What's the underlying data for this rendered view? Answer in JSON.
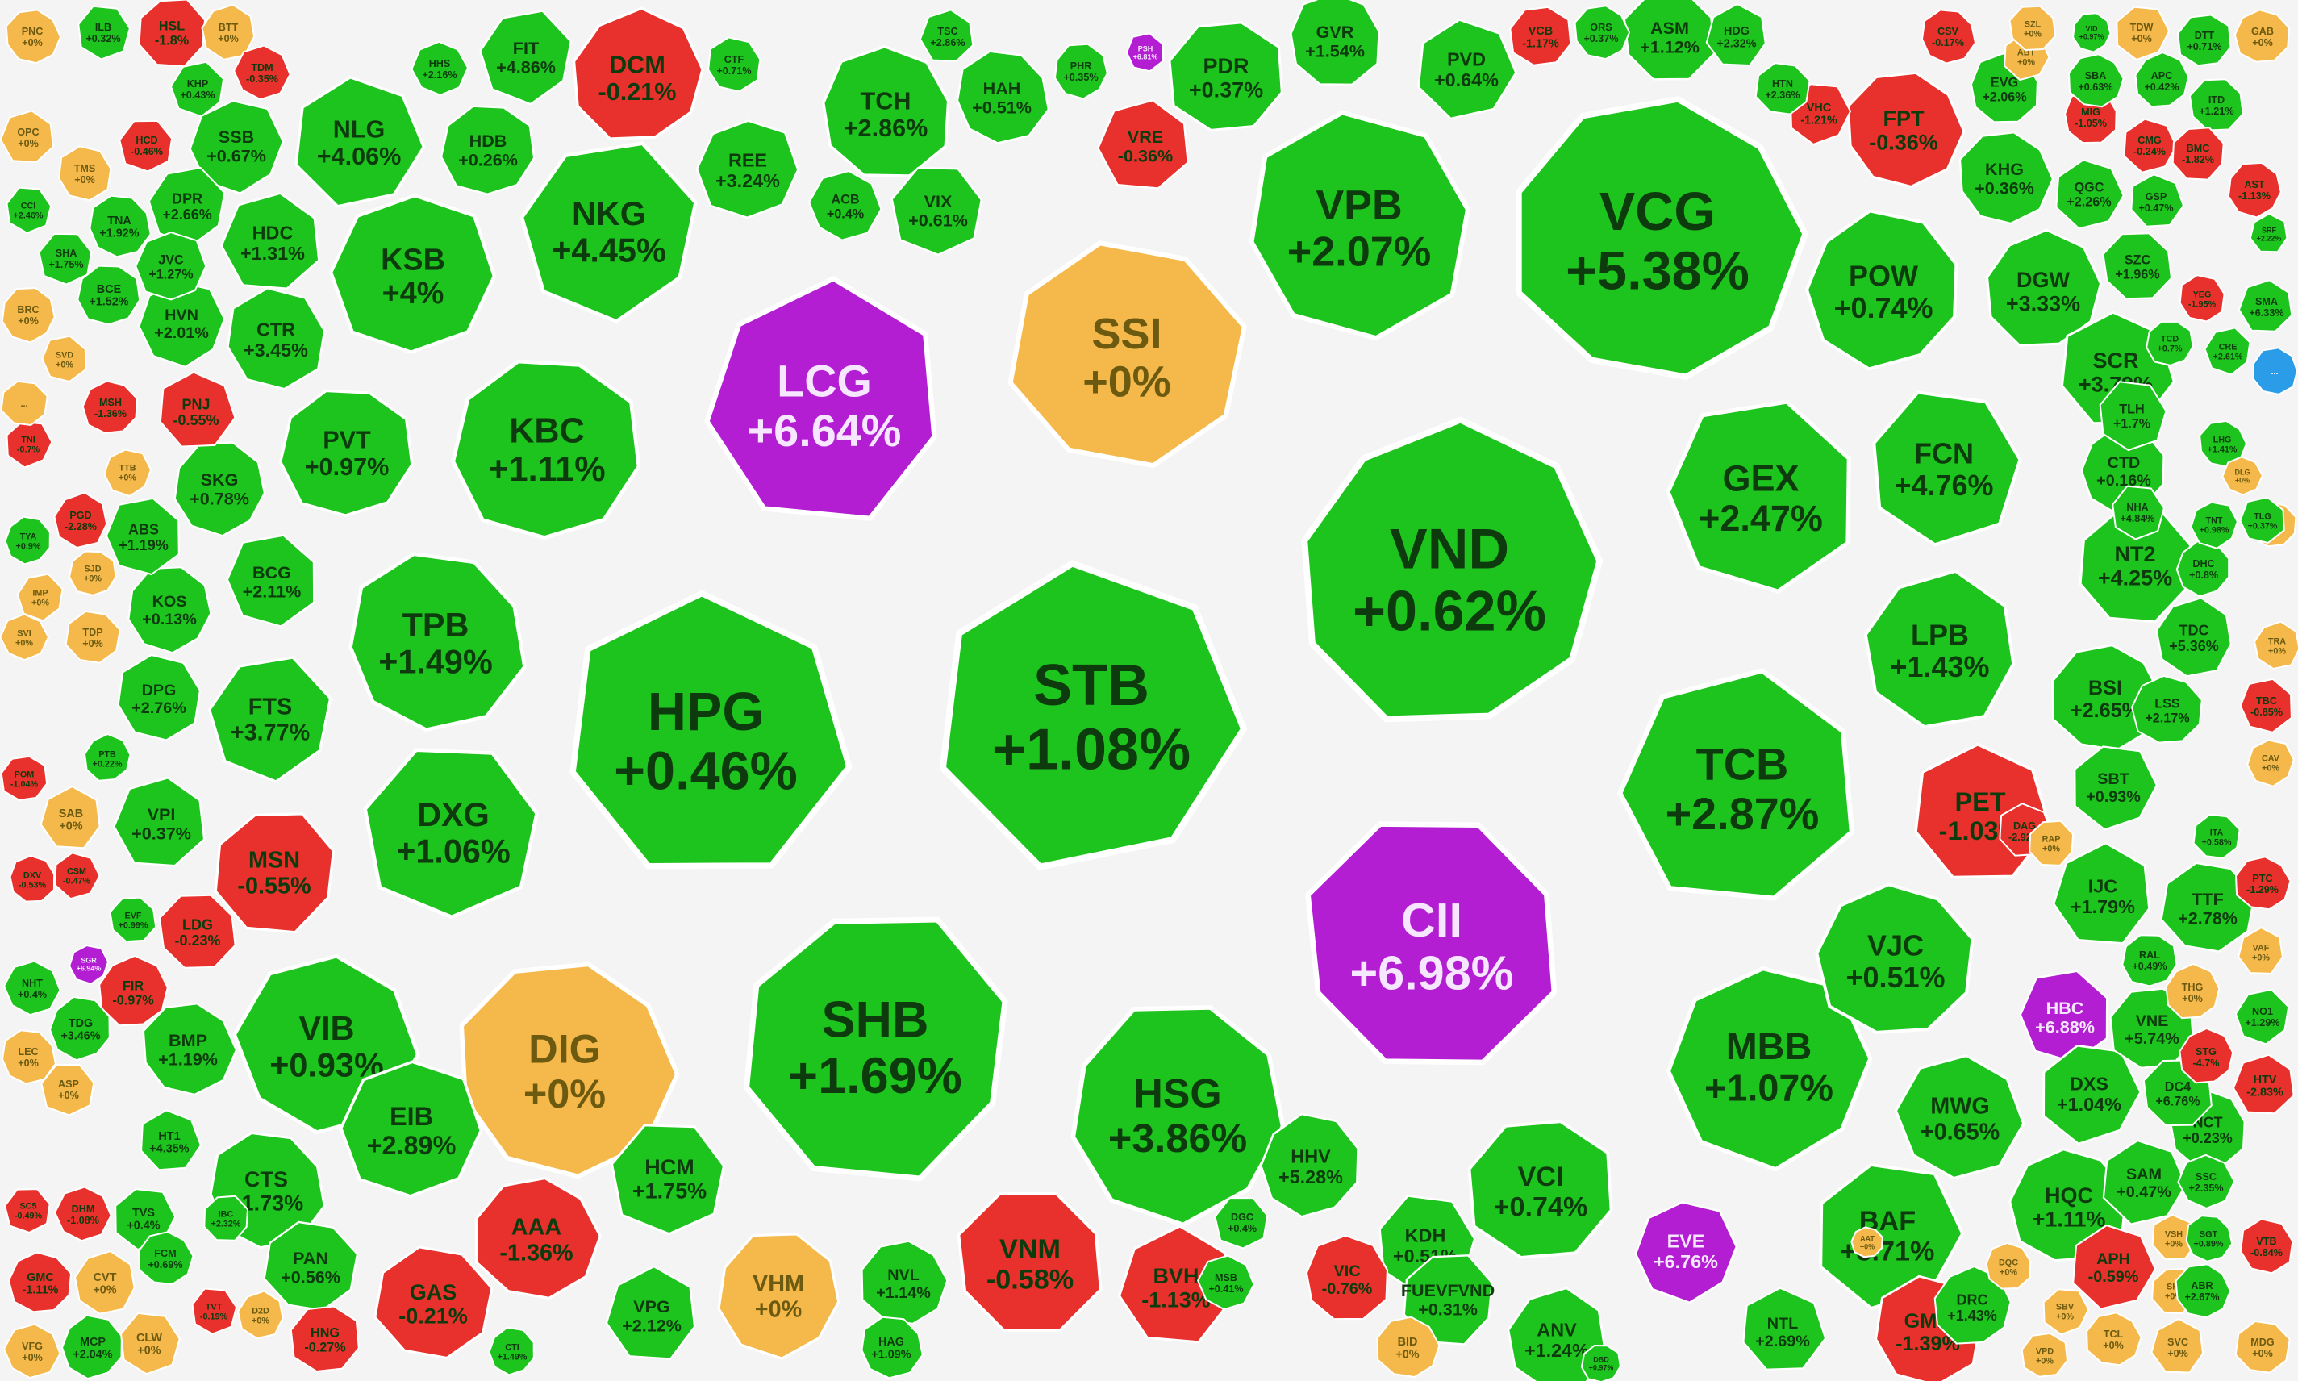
{
  "colors": {
    "up": "#1ec41e",
    "down": "#e8302c",
    "flat": "#f5b84a",
    "ceiling": "#b31ed2",
    "floor": "#2a9ce8",
    "background": "#f4f4f4"
  },
  "stocks": [
    {
      "ticker": "STB",
      "change": "+1.08%",
      "status": "up"
    },
    {
      "ticker": "CII",
      "change": "+6.98%",
      "status": "ceiling"
    },
    {
      "ticker": "VND",
      "change": "+0.62%",
      "status": "up"
    },
    {
      "ticker": "HPG",
      "change": "+0.46%",
      "status": "up"
    },
    {
      "ticker": "SHB",
      "change": "+1.69%",
      "status": "up"
    },
    {
      "ticker": "VCG",
      "change": "+5.38%",
      "status": "up"
    },
    {
      "ticker": "LCG",
      "change": "+6.64%",
      "status": "ceiling"
    },
    {
      "ticker": "SSI",
      "change": "+0%",
      "status": "flat"
    },
    {
      "ticker": "DIG",
      "change": "+0%",
      "status": "flat"
    },
    {
      "ticker": "TCB",
      "change": "+2.87%",
      "status": "up"
    },
    {
      "ticker": "VPB",
      "change": "+2.07%",
      "status": "up"
    },
    {
      "ticker": "HSG",
      "change": "+3.86%",
      "status": "up"
    },
    {
      "ticker": "GEX",
      "change": "+2.47%",
      "status": "up"
    },
    {
      "ticker": "MBB",
      "change": "+1.07%",
      "status": "up"
    },
    {
      "ticker": "KBC",
      "change": "+1.11%",
      "status": "up"
    },
    {
      "ticker": "NKG",
      "change": "+4.45%",
      "status": "up"
    },
    {
      "ticker": "KSB",
      "change": "+4%",
      "status": "up"
    },
    {
      "ticker": "TPB",
      "change": "+1.49%",
      "status": "up"
    },
    {
      "ticker": "DXG",
      "change": "+1.06%",
      "status": "up"
    },
    {
      "ticker": "VIB",
      "change": "+0.93%",
      "status": "up"
    },
    {
      "ticker": "POW",
      "change": "+0.74%",
      "status": "up"
    },
    {
      "ticker": "FCN",
      "change": "+4.76%",
      "status": "up"
    },
    {
      "ticker": "LPB",
      "change": "+1.43%",
      "status": "up"
    },
    {
      "ticker": "VJC",
      "change": "+0.51%",
      "status": "up"
    },
    {
      "ticker": "BAF",
      "change": "+3.71%",
      "status": "up"
    },
    {
      "ticker": "VCI",
      "change": "+0.74%",
      "status": "up"
    },
    {
      "ticker": "TCH",
      "change": "+2.86%",
      "status": "up"
    },
    {
      "ticker": "NLG",
      "change": "+4.06%",
      "status": "up"
    },
    {
      "ticker": "VNM",
      "change": "-0.58%",
      "status": "down"
    },
    {
      "ticker": "DCM",
      "change": "-0.21%",
      "status": "down"
    },
    {
      "ticker": "PET",
      "change": "-1.03%",
      "status": "down"
    },
    {
      "ticker": "MSN",
      "change": "-0.55%",
      "status": "down"
    },
    {
      "ticker": "AAA",
      "change": "-1.36%",
      "status": "down"
    },
    {
      "ticker": "BVH",
      "change": "-1.13%",
      "status": "down"
    },
    {
      "ticker": "GAS",
      "change": "-0.21%",
      "status": "down"
    },
    {
      "ticker": "FPT",
      "change": "-0.36%",
      "status": "down"
    },
    {
      "ticker": "VRE",
      "change": "-0.36%",
      "status": "down"
    },
    {
      "ticker": "GMD",
      "change": "-1.39%",
      "status": "down"
    },
    {
      "ticker": "VHM",
      "change": "+0%",
      "status": "flat"
    },
    {
      "ticker": "HBC",
      "change": "+6.88%",
      "status": "ceiling"
    },
    {
      "ticker": "EVE",
      "change": "+6.76%",
      "status": "ceiling"
    },
    {
      "ticker": "PVT",
      "change": "+0.97%",
      "status": "up"
    },
    {
      "ticker": "FTS",
      "change": "+3.77%",
      "status": "up"
    },
    {
      "ticker": "EIB",
      "change": "+2.89%",
      "status": "up"
    },
    {
      "ticker": "CTS",
      "change": "+1.73%",
      "status": "up"
    },
    {
      "ticker": "HCM",
      "change": "+1.75%",
      "status": "up"
    },
    {
      "ticker": "MWG",
      "change": "+0.65%",
      "status": "up"
    },
    {
      "ticker": "HHV",
      "change": "+5.28%",
      "status": "up"
    },
    {
      "ticker": "KDH",
      "change": "+0.51%",
      "status": "up"
    },
    {
      "ticker": "ANV",
      "change": "+1.24%",
      "status": "up"
    },
    {
      "ticker": "HQC",
      "change": "+1.11%",
      "status": "up"
    },
    {
      "ticker": "DXS",
      "change": "+1.04%",
      "status": "up"
    },
    {
      "ticker": "PDR",
      "change": "+0.37%",
      "status": "up"
    },
    {
      "ticker": "GVR",
      "change": "+1.54%",
      "status": "up"
    },
    {
      "ticker": "PVD",
      "change": "+0.64%",
      "status": "up"
    },
    {
      "ticker": "ASM",
      "change": "+1.12%",
      "status": "up"
    },
    {
      "ticker": "DGW",
      "change": "+3.33%",
      "status": "up"
    },
    {
      "ticker": "SCR",
      "change": "+3.79%",
      "status": "up"
    },
    {
      "ticker": "NT2",
      "change": "+4.25%",
      "status": "up"
    },
    {
      "ticker": "BSI",
      "change": "+2.65%",
      "status": "up"
    },
    {
      "ticker": "IJC",
      "change": "+1.79%",
      "status": "up"
    },
    {
      "ticker": "TTF",
      "change": "+2.78%",
      "status": "up"
    },
    {
      "ticker": "KHG",
      "change": "+0.36%",
      "status": "up"
    },
    {
      "ticker": "HDC",
      "change": "+1.31%",
      "status": "up"
    },
    {
      "ticker": "CTR",
      "change": "+3.45%",
      "status": "up"
    },
    {
      "ticker": "SKG",
      "change": "+0.78%",
      "status": "up"
    },
    {
      "ticker": "BCG",
      "change": "+2.11%",
      "status": "up"
    },
    {
      "ticker": "SSB",
      "change": "+0.67%",
      "status": "up"
    },
    {
      "ticker": "HDB",
      "change": "+0.26%",
      "status": "up"
    },
    {
      "ticker": "FIT",
      "change": "+4.86%",
      "status": "up"
    },
    {
      "ticker": "REE",
      "change": "+3.24%",
      "status": "up"
    },
    {
      "ticker": "HAH",
      "change": "+0.51%",
      "status": "up"
    },
    {
      "ticker": "VIX",
      "change": "+0.61%",
      "status": "up"
    },
    {
      "ticker": "ACB",
      "change": "+0.4%",
      "status": "up"
    },
    {
      "ticker": "CTD",
      "change": "+0.16%",
      "status": "up"
    },
    {
      "ticker": "TLH",
      "change": "+1.7%",
      "status": "up"
    },
    {
      "ticker": "TDC",
      "change": "+5.36%",
      "status": "up"
    },
    {
      "ticker": "LSS",
      "change": "+2.17%",
      "status": "up"
    },
    {
      "ticker": "SBT",
      "change": "+0.93%",
      "status": "up"
    },
    {
      "ticker": "VNE",
      "change": "+5.74%",
      "status": "up"
    },
    {
      "ticker": "NCT",
      "change": "+0.23%",
      "status": "up"
    },
    {
      "ticker": "SAM",
      "change": "+0.47%",
      "status": "up"
    },
    {
      "ticker": "DC4",
      "change": "+6.76%",
      "status": "up"
    },
    {
      "ticker": "DRC",
      "change": "+1.43%",
      "status": "up"
    },
    {
      "ticker": "NTL",
      "change": "+2.69%",
      "status": "up"
    },
    {
      "ticker": "FUEVFVND",
      "change": "+0.31%",
      "status": "up"
    },
    {
      "ticker": "NVL",
      "change": "+1.14%",
      "status": "up"
    },
    {
      "ticker": "VPG",
      "change": "+2.12%",
      "status": "up"
    },
    {
      "ticker": "PAN",
      "change": "+0.56%",
      "status": "up"
    },
    {
      "ticker": "BMP",
      "change": "+1.19%",
      "status": "up"
    },
    {
      "ticker": "VPI",
      "change": "+0.37%",
      "status": "up"
    },
    {
      "ticker": "DPG",
      "change": "+2.76%",
      "status": "up"
    },
    {
      "ticker": "KOS",
      "change": "+0.13%",
      "status": "up"
    },
    {
      "ticker": "ABS",
      "change": "+1.19%",
      "status": "up"
    },
    {
      "ticker": "HVN",
      "change": "+2.01%",
      "status": "up"
    },
    {
      "ticker": "BCE",
      "change": "+1.52%",
      "status": "up"
    },
    {
      "ticker": "DPR",
      "change": "+2.66%",
      "status": "up"
    },
    {
      "ticker": "JVC",
      "change": "+1.27%",
      "status": "up"
    },
    {
      "ticker": "TNA",
      "change": "+1.92%",
      "status": "up"
    },
    {
      "ticker": "SHA",
      "change": "+1.75%",
      "status": "up"
    },
    {
      "ticker": "VFG",
      "change": "+0%",
      "status": "flat"
    },
    {
      "ticker": "MCP",
      "change": "+2.04%",
      "status": "up"
    },
    {
      "ticker": "CLW",
      "change": "+0%",
      "status": "flat"
    },
    {
      "ticker": "CVT",
      "change": "+0%",
      "status": "flat"
    },
    {
      "ticker": "GMC",
      "change": "-1.11%",
      "status": "down"
    },
    {
      "ticker": "TVS",
      "change": "+0.4%",
      "status": "up"
    },
    {
      "ticker": "HNG",
      "change": "-0.27%",
      "status": "down"
    },
    {
      "ticker": "VIC",
      "change": "-0.76%",
      "status": "down"
    },
    {
      "ticker": "APH",
      "change": "-0.59%",
      "status": "down"
    },
    {
      "ticker": "LDG",
      "change": "-0.23%",
      "status": "down"
    },
    {
      "ticker": "FIR",
      "change": "-0.97%",
      "status": "down"
    },
    {
      "ticker": "PNJ",
      "change": "-0.55%",
      "status": "down"
    },
    {
      "ticker": "HSL",
      "change": "-1.8%",
      "status": "down"
    },
    {
      "ticker": "BID",
      "change": "+0%",
      "status": "flat"
    },
    {
      "ticker": "SAB",
      "change": "+0%",
      "status": "flat"
    },
    {
      "ticker": "TDP",
      "change": "+0%",
      "status": "flat"
    },
    {
      "ticker": "PNC",
      "change": "+0%",
      "status": "flat"
    },
    {
      "ticker": "OPC",
      "change": "+0%",
      "status": "flat"
    },
    {
      "ticker": "TMS",
      "change": "+0%",
      "status": "flat"
    },
    {
      "ticker": "BRC",
      "change": "+0%",
      "status": "flat"
    },
    {
      "ticker": "SVD",
      "change": "+0%",
      "status": "flat"
    },
    {
      "ticker": "TTB",
      "change": "+0%",
      "status": "flat"
    },
    {
      "ticker": "SJD",
      "change": "+0%",
      "status": "flat"
    },
    {
      "ticker": "IMP",
      "change": "+0%",
      "status": "flat"
    },
    {
      "ticker": "SVI",
      "change": "+0%",
      "status": "flat"
    },
    {
      "ticker": "LEC",
      "change": "+0%",
      "status": "flat"
    },
    {
      "ticker": "ASP",
      "change": "+0%",
      "status": "flat"
    },
    {
      "ticker": "NHT",
      "change": "+0.4%",
      "status": "up"
    },
    {
      "ticker": "TYA",
      "change": "+0.9%",
      "status": "up"
    },
    {
      "ticker": "ILB",
      "change": "+0.32%",
      "status": "up"
    },
    {
      "ticker": "BTT",
      "change": "+0%",
      "status": "flat"
    },
    {
      "ticker": "GAB",
      "change": "+0%",
      "status": "flat"
    },
    {
      "ticker": "TDW",
      "change": "+0%",
      "status": "flat"
    },
    {
      "ticker": "DTT",
      "change": "+0.71%",
      "status": "up"
    },
    {
      "ticker": "EVG",
      "change": "+2.06%",
      "status": "up"
    },
    {
      "ticker": "QGC",
      "change": "+2.26%",
      "status": "up"
    },
    {
      "ticker": "SZC",
      "change": "+1.96%",
      "status": "up"
    },
    {
      "ticker": "THG",
      "change": "+0%",
      "status": "flat"
    },
    {
      "ticker": "VSH",
      "change": "+0%",
      "status": "flat"
    },
    {
      "ticker": "SHI",
      "change": "+0%",
      "status": "flat"
    },
    {
      "ticker": "TCL",
      "change": "+0%",
      "status": "flat"
    },
    {
      "ticker": "SVC",
      "change": "+0%",
      "status": "flat"
    },
    {
      "ticker": "MDG",
      "change": "+0%",
      "status": "flat"
    },
    {
      "ticker": "ABR",
      "change": "+2.67%",
      "status": "up"
    },
    {
      "ticker": "HTV",
      "change": "-2.83%",
      "status": "down"
    },
    {
      "ticker": "VTB",
      "change": "-0.84%",
      "status": "down"
    },
    {
      "ticker": "AST",
      "change": "-1.13%",
      "status": "down"
    },
    {
      "ticker": "TBC",
      "change": "-0.85%",
      "status": "down"
    },
    {
      "ticker": "CAV",
      "change": "+0%",
      "status": "flat"
    },
    {
      "ticker": "RAL",
      "change": "+0.49%",
      "status": "up"
    },
    {
      "ticker": "NO1",
      "change": "+1.29%",
      "status": "up"
    },
    {
      "ticker": "SSC",
      "change": "+2.35%",
      "status": "up"
    },
    {
      "ticker": "HAG",
      "change": "+1.09%",
      "status": "up"
    },
    {
      "ticker": "DGC",
      "change": "+0.4%",
      "status": "up"
    },
    {
      "ticker": "MSB",
      "change": "+0.41%",
      "status": "up"
    },
    {
      "ticker": "DHC",
      "change": "+0.8%",
      "status": "up"
    },
    {
      "ticker": "NHA",
      "change": "+4.84%",
      "status": "up"
    },
    {
      "ticker": "TRA",
      "change": "+0%",
      "status": "flat"
    },
    {
      "ticker": "S4A",
      "change": "+0%",
      "status": "flat"
    },
    {
      "ticker": "VHC",
      "change": "-1.21%",
      "status": "down"
    },
    {
      "ticker": "VCB",
      "change": "-1.17%",
      "status": "down"
    },
    {
      "ticker": "MIG",
      "change": "-1.05%",
      "status": "down"
    },
    {
      "ticker": "CMG",
      "change": "-0.24%",
      "status": "down"
    },
    {
      "ticker": "ITD",
      "change": "+1.21%",
      "status": "up"
    },
    {
      "ticker": "APC",
      "change": "+0.42%",
      "status": "up"
    },
    {
      "ticker": "GSP",
      "change": "+0.47%",
      "status": "up"
    },
    {
      "ticker": "BMC",
      "change": "-1.82%",
      "status": "down"
    },
    {
      "ticker": "SBA",
      "change": "+0.63%",
      "status": "up"
    },
    {
      "ticker": "HDG",
      "change": "+2.32%",
      "status": "up"
    },
    {
      "ticker": "HTN",
      "change": "+2.36%",
      "status": "up"
    },
    {
      "ticker": "ORS",
      "change": "+0.37%",
      "status": "up"
    },
    {
      "ticker": "TSC",
      "change": "+2.86%",
      "status": "up"
    },
    {
      "ticker": "CTF",
      "change": "+0.71%",
      "status": "up"
    },
    {
      "ticker": "PHR",
      "change": "+0.35%",
      "status": "up"
    },
    {
      "ticker": "PSH",
      "change": "+6.81%",
      "status": "ceiling"
    },
    {
      "ticker": "SGR",
      "change": "+6.94%",
      "status": "ceiling"
    },
    {
      "ticker": "DBD",
      "change": "+0.97%",
      "status": "up"
    },
    {
      "ticker": "KHP",
      "change": "+0.43%",
      "status": "up"
    },
    {
      "ticker": "HHS",
      "change": "+2.16%",
      "status": "up"
    },
    {
      "ticker": "CSV",
      "change": "-0.17%",
      "status": "down"
    },
    {
      "ticker": "HCD",
      "change": "-0.46%",
      "status": "down"
    },
    {
      "ticker": "TDM",
      "change": "-0.35%",
      "status": "down"
    },
    {
      "ticker": "CTI",
      "change": "+1.49%",
      "status": "up"
    },
    {
      "ticker": "TVT",
      "change": "-0.19%",
      "status": "down"
    },
    {
      "ticker": "D2D",
      "change": "+0%",
      "status": "flat"
    },
    {
      "ticker": "AAT",
      "change": "+0%",
      "status": "flat"
    },
    {
      "ticker": "SBV",
      "change": "+0%",
      "status": "flat"
    },
    {
      "ticker": "VPD",
      "change": "+0%",
      "status": "flat"
    },
    {
      "ticker": "DQC",
      "change": "+0%",
      "status": "flat"
    },
    {
      "ticker": "ABT",
      "change": "+0%",
      "status": "flat"
    },
    {
      "ticker": "SZL",
      "change": "+0%",
      "status": "flat"
    },
    {
      "ticker": "STG",
      "change": "-4.7%",
      "status": "down"
    },
    {
      "ticker": "DAG",
      "change": "-2.92%",
      "status": "down"
    },
    {
      "ticker": "RAP",
      "change": "+0%",
      "status": "flat"
    },
    {
      "ticker": "PTC",
      "change": "-1.29%",
      "status": "down"
    },
    {
      "ticker": "VAF",
      "change": "+0%",
      "status": "flat"
    },
    {
      "ticker": "ITA",
      "change": "+0.58%",
      "status": "up"
    },
    {
      "ticker": "LHG",
      "change": "+1.41%",
      "status": "up"
    },
    {
      "ticker": "SMA",
      "change": "+6.33%",
      "status": "up"
    },
    {
      "ticker": "YEG",
      "change": "-1.95%",
      "status": "down"
    },
    {
      "ticker": "VID",
      "change": "+0.97%",
      "status": "up"
    },
    {
      "ticker": "TLG",
      "change": "+0.37%",
      "status": "up"
    },
    {
      "ticker": "TNT",
      "change": "+0.98%",
      "status": "up"
    },
    {
      "ticker": "TCD",
      "change": "+0.7%",
      "status": "up"
    },
    {
      "ticker": "CRE",
      "change": "+2.61%",
      "status": "up"
    },
    {
      "ticker": "DLG",
      "change": "+0%",
      "status": "flat"
    },
    {
      "ticker": "SGT",
      "change": "+0.89%",
      "status": "up"
    },
    {
      "ticker": "SC5",
      "change": "-0.49%",
      "status": "down"
    },
    {
      "ticker": "DHM",
      "change": "-1.08%",
      "status": "down"
    },
    {
      "ticker": "TDG",
      "change": "+3.46%",
      "status": "up"
    },
    {
      "ticker": "CCI",
      "change": "+2.46%",
      "status": "up"
    },
    {
      "ticker": "PGD",
      "change": "-2.28%",
      "status": "down"
    },
    {
      "ticker": "MSH",
      "change": "-1.36%",
      "status": "down"
    },
    {
      "ticker": "TNI",
      "change": "-0.7%",
      "status": "down"
    },
    {
      "ticker": "POM",
      "change": "-1.04%",
      "status": "down"
    },
    {
      "ticker": "DXV",
      "change": "-0.53%",
      "status": "down"
    },
    {
      "ticker": "CSM",
      "change": "-0.47%",
      "status": "down"
    },
    {
      "ticker": "EVF",
      "change": "+0.99%",
      "status": "up"
    },
    {
      "ticker": "PTB",
      "change": "+0.22%",
      "status": "up"
    },
    {
      "ticker": "HT1",
      "change": "+4.35%",
      "status": "up"
    },
    {
      "ticker": "IBC",
      "change": "+2.32%",
      "status": "up"
    },
    {
      "ticker": "FCM",
      "change": "+0.69%",
      "status": "up"
    },
    {
      "ticker": "SRF",
      "change": "+2.22%",
      "status": "up"
    },
    {
      "ticker": "...",
      "change": "",
      "status": "flat"
    },
    {
      "ticker": "...",
      "change": "",
      "status": "floor"
    }
  ]
}
